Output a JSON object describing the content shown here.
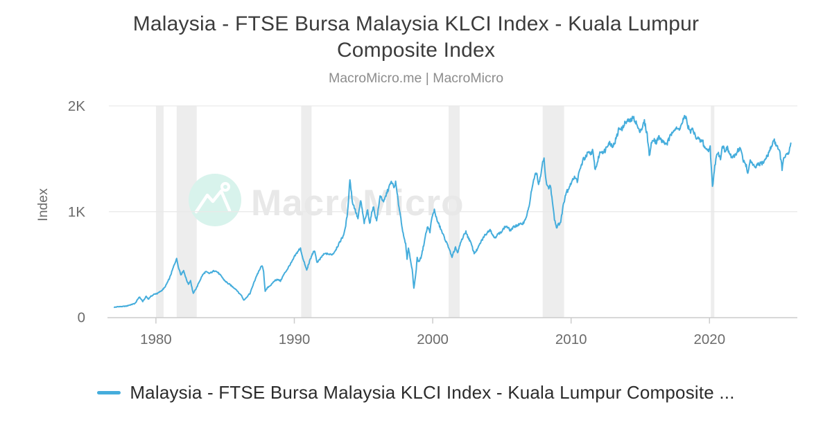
{
  "header": {
    "title": "Malaysia - FTSE Bursa Malaysia KLCI Index - Kuala Lumpur Composite Index",
    "subtitle": "MacroMicro.me | MacroMicro"
  },
  "watermark": {
    "text": "MacroMicro",
    "icon": "macromicro-mountain-logo",
    "circle_color": "#d8f3ec",
    "icon_color": "#ffffff",
    "text_color": "#e8e8e8"
  },
  "legend": {
    "label": "Malaysia - FTSE Bursa Malaysia KLCI Index - Kuala Lumpur Composite ...",
    "swatch_color": "#45addc"
  },
  "chart_data": {
    "type": "line",
    "title": "Malaysia - FTSE Bursa Malaysia KLCI Index - Kuala Lumpur Composite Index",
    "subtitle": "MacroMicro.me | MacroMicro",
    "xlabel": "",
    "ylabel": "Index",
    "x_range": [
      1976.6,
      2026.35
    ],
    "y_range": [
      0,
      2000
    ],
    "x_ticks": [
      1980,
      1990,
      2000,
      2010,
      2020
    ],
    "y_ticks": [
      {
        "value": 0,
        "label": "0"
      },
      {
        "value": 1000,
        "label": "1K"
      },
      {
        "value": 2000,
        "label": "2K"
      }
    ],
    "grid": "horizontal",
    "legend_position": "bottom",
    "line_color": "#45addc",
    "band_color": "#ededed",
    "grid_color": "#e9e9e9",
    "axis_color": "#cbcbcb",
    "tick_text_color": "#6b6b6b",
    "noise_pct": 1.6,
    "recession_bands": [
      [
        1980.0,
        1980.55
      ],
      [
        1981.5,
        1982.95
      ],
      [
        1990.5,
        1991.25
      ],
      [
        2001.15,
        2001.95
      ],
      [
        2007.95,
        2009.5
      ],
      [
        2020.1,
        2020.35
      ]
    ],
    "series": [
      {
        "name": "Malaysia - FTSE Bursa Malaysia KLCI Index - Kuala Lumpur Composite Index",
        "points": [
          [
            1977.0,
            97
          ],
          [
            1977.3,
            100
          ],
          [
            1977.6,
            102
          ],
          [
            1977.9,
            108
          ],
          [
            1978.2,
            118
          ],
          [
            1978.5,
            132
          ],
          [
            1978.8,
            193
          ],
          [
            1979.05,
            152
          ],
          [
            1979.3,
            198
          ],
          [
            1979.45,
            172
          ],
          [
            1979.65,
            200
          ],
          [
            1979.85,
            215
          ],
          [
            1980.1,
            226
          ],
          [
            1980.4,
            252
          ],
          [
            1980.7,
            292
          ],
          [
            1981.0,
            372
          ],
          [
            1981.25,
            465
          ],
          [
            1981.5,
            556
          ],
          [
            1981.65,
            472
          ],
          [
            1981.8,
            402
          ],
          [
            1982.0,
            438
          ],
          [
            1982.2,
            362
          ],
          [
            1982.35,
            312
          ],
          [
            1982.5,
            345
          ],
          [
            1982.7,
            226
          ],
          [
            1982.9,
            268
          ],
          [
            1983.1,
            330
          ],
          [
            1983.35,
            396
          ],
          [
            1983.6,
            432
          ],
          [
            1983.85,
            416
          ],
          [
            1984.1,
            430
          ],
          [
            1984.3,
            448
          ],
          [
            1984.55,
            412
          ],
          [
            1984.8,
            372
          ],
          [
            1985.05,
            340
          ],
          [
            1985.3,
            312
          ],
          [
            1985.55,
            285
          ],
          [
            1985.8,
            262
          ],
          [
            1986.0,
            232
          ],
          [
            1986.15,
            214
          ],
          [
            1986.35,
            162
          ],
          [
            1986.55,
            186
          ],
          [
            1986.8,
            228
          ],
          [
            1987.05,
            318
          ],
          [
            1987.3,
            396
          ],
          [
            1987.5,
            445
          ],
          [
            1987.65,
            492
          ],
          [
            1987.78,
            438
          ],
          [
            1987.9,
            245
          ],
          [
            1988.05,
            278
          ],
          [
            1988.25,
            302
          ],
          [
            1988.5,
            332
          ],
          [
            1988.75,
            362
          ],
          [
            1989.0,
            345
          ],
          [
            1989.25,
            405
          ],
          [
            1989.5,
            455
          ],
          [
            1989.75,
            512
          ],
          [
            1990.0,
            566
          ],
          [
            1990.2,
            606
          ],
          [
            1990.45,
            655
          ],
          [
            1990.65,
            540
          ],
          [
            1990.9,
            452
          ],
          [
            1991.1,
            522
          ],
          [
            1991.3,
            596
          ],
          [
            1991.45,
            634
          ],
          [
            1991.65,
            520
          ],
          [
            1991.85,
            548
          ],
          [
            1992.05,
            586
          ],
          [
            1992.3,
            612
          ],
          [
            1992.55,
            590
          ],
          [
            1992.8,
            602
          ],
          [
            1993.0,
            645
          ],
          [
            1993.2,
            682
          ],
          [
            1993.45,
            746
          ],
          [
            1993.65,
            822
          ],
          [
            1993.85,
            996
          ],
          [
            1994.02,
            1308
          ],
          [
            1994.2,
            1092
          ],
          [
            1994.4,
            1012
          ],
          [
            1994.6,
            926
          ],
          [
            1994.8,
            1104
          ],
          [
            1995.05,
            893
          ],
          [
            1995.3,
            1024
          ],
          [
            1995.45,
            886
          ],
          [
            1995.7,
            1050
          ],
          [
            1995.95,
            918
          ],
          [
            1996.2,
            1147
          ],
          [
            1996.45,
            1082
          ],
          [
            1996.7,
            1180
          ],
          [
            1996.9,
            1240
          ],
          [
            1997.05,
            1282
          ],
          [
            1997.2,
            1230
          ],
          [
            1997.32,
            1266
          ],
          [
            1997.5,
            1100
          ],
          [
            1997.7,
            940
          ],
          [
            1997.9,
            762
          ],
          [
            1998.05,
            690
          ],
          [
            1998.15,
            562
          ],
          [
            1998.25,
            664
          ],
          [
            1998.4,
            540
          ],
          [
            1998.52,
            456
          ],
          [
            1998.64,
            268
          ],
          [
            1998.78,
            412
          ],
          [
            1998.88,
            566
          ],
          [
            1999.0,
            522
          ],
          [
            1999.15,
            560
          ],
          [
            1999.35,
            680
          ],
          [
            1999.5,
            782
          ],
          [
            1999.65,
            860
          ],
          [
            1999.8,
            818
          ],
          [
            1999.95,
            942
          ],
          [
            2000.12,
            1005
          ],
          [
            2000.3,
            920
          ],
          [
            2000.5,
            862
          ],
          [
            2000.7,
            796
          ],
          [
            2000.95,
            720
          ],
          [
            2001.2,
            642
          ],
          [
            2001.4,
            556
          ],
          [
            2001.65,
            675
          ],
          [
            2001.8,
            600
          ],
          [
            2002.0,
            692
          ],
          [
            2002.2,
            762
          ],
          [
            2002.4,
            818
          ],
          [
            2002.6,
            740
          ],
          [
            2002.8,
            688
          ],
          [
            2003.0,
            602
          ],
          [
            2003.2,
            636
          ],
          [
            2003.45,
            700
          ],
          [
            2003.7,
            762
          ],
          [
            2003.95,
            806
          ],
          [
            2004.15,
            840
          ],
          [
            2004.45,
            756
          ],
          [
            2004.65,
            772
          ],
          [
            2004.85,
            792
          ],
          [
            2005.05,
            830
          ],
          [
            2005.3,
            872
          ],
          [
            2005.5,
            846
          ],
          [
            2005.65,
            826
          ],
          [
            2005.8,
            846
          ],
          [
            2005.95,
            862
          ],
          [
            2006.15,
            876
          ],
          [
            2006.35,
            882
          ],
          [
            2006.5,
            894
          ],
          [
            2006.65,
            922
          ],
          [
            2006.8,
            976
          ],
          [
            2007.0,
            1060
          ],
          [
            2007.15,
            1200
          ],
          [
            2007.3,
            1312
          ],
          [
            2007.5,
            1386
          ],
          [
            2007.65,
            1242
          ],
          [
            2007.8,
            1340
          ],
          [
            2007.95,
            1456
          ],
          [
            2008.05,
            1506
          ],
          [
            2008.2,
            1282
          ],
          [
            2008.35,
            1232
          ],
          [
            2008.5,
            1252
          ],
          [
            2008.65,
            1102
          ],
          [
            2008.8,
            922
          ],
          [
            2008.95,
            850
          ],
          [
            2009.1,
            882
          ],
          [
            2009.25,
            906
          ],
          [
            2009.45,
            1082
          ],
          [
            2009.65,
            1172
          ],
          [
            2009.85,
            1232
          ],
          [
            2010.05,
            1290
          ],
          [
            2010.25,
            1332
          ],
          [
            2010.45,
            1302
          ],
          [
            2010.65,
            1402
          ],
          [
            2010.9,
            1502
          ],
          [
            2011.1,
            1532
          ],
          [
            2011.3,
            1546
          ],
          [
            2011.55,
            1582
          ],
          [
            2011.75,
            1392
          ],
          [
            2011.9,
            1452
          ],
          [
            2012.05,
            1532
          ],
          [
            2012.25,
            1582
          ],
          [
            2012.45,
            1562
          ],
          [
            2012.65,
            1632
          ],
          [
            2012.85,
            1652
          ],
          [
            2013.05,
            1632
          ],
          [
            2013.25,
            1692
          ],
          [
            2013.45,
            1772
          ],
          [
            2013.65,
            1792
          ],
          [
            2013.85,
            1822
          ],
          [
            2014.05,
            1836
          ],
          [
            2014.25,
            1862
          ],
          [
            2014.5,
            1888
          ],
          [
            2014.7,
            1852
          ],
          [
            2014.9,
            1772
          ],
          [
            2015.1,
            1792
          ],
          [
            2015.3,
            1842
          ],
          [
            2015.5,
            1722
          ],
          [
            2015.65,
            1536
          ],
          [
            2015.8,
            1642
          ],
          [
            2015.95,
            1682
          ],
          [
            2016.15,
            1656
          ],
          [
            2016.35,
            1702
          ],
          [
            2016.55,
            1662
          ],
          [
            2016.75,
            1666
          ],
          [
            2016.95,
            1636
          ],
          [
            2017.15,
            1702
          ],
          [
            2017.35,
            1756
          ],
          [
            2017.55,
            1772
          ],
          [
            2017.75,
            1766
          ],
          [
            2017.95,
            1802
          ],
          [
            2018.1,
            1856
          ],
          [
            2018.3,
            1892
          ],
          [
            2018.45,
            1802
          ],
          [
            2018.6,
            1760
          ],
          [
            2018.75,
            1780
          ],
          [
            2018.95,
            1720
          ],
          [
            2019.1,
            1700
          ],
          [
            2019.3,
            1655
          ],
          [
            2019.5,
            1665
          ],
          [
            2019.7,
            1610
          ],
          [
            2019.9,
            1585
          ],
          [
            2020.05,
            1592
          ],
          [
            2020.22,
            1226
          ],
          [
            2020.35,
            1392
          ],
          [
            2020.5,
            1502
          ],
          [
            2020.65,
            1562
          ],
          [
            2020.8,
            1522
          ],
          [
            2020.95,
            1642
          ],
          [
            2021.1,
            1592
          ],
          [
            2021.3,
            1612
          ],
          [
            2021.5,
            1542
          ],
          [
            2021.7,
            1506
          ],
          [
            2021.9,
            1542
          ],
          [
            2022.05,
            1582
          ],
          [
            2022.25,
            1602
          ],
          [
            2022.45,
            1472
          ],
          [
            2022.6,
            1442
          ],
          [
            2022.8,
            1376
          ],
          [
            2022.95,
            1482
          ],
          [
            2023.1,
            1442
          ],
          [
            2023.3,
            1402
          ],
          [
            2023.5,
            1432
          ],
          [
            2023.7,
            1446
          ],
          [
            2023.9,
            1456
          ],
          [
            2024.1,
            1512
          ],
          [
            2024.3,
            1562
          ],
          [
            2024.5,
            1622
          ],
          [
            2024.65,
            1682
          ],
          [
            2024.8,
            1632
          ],
          [
            2024.95,
            1602
          ],
          [
            2025.1,
            1562
          ],
          [
            2025.25,
            1402
          ],
          [
            2025.4,
            1516
          ],
          [
            2025.55,
            1536
          ],
          [
            2025.7,
            1548
          ],
          [
            2025.8,
            1602
          ],
          [
            2025.88,
            1648
          ]
        ]
      }
    ]
  }
}
